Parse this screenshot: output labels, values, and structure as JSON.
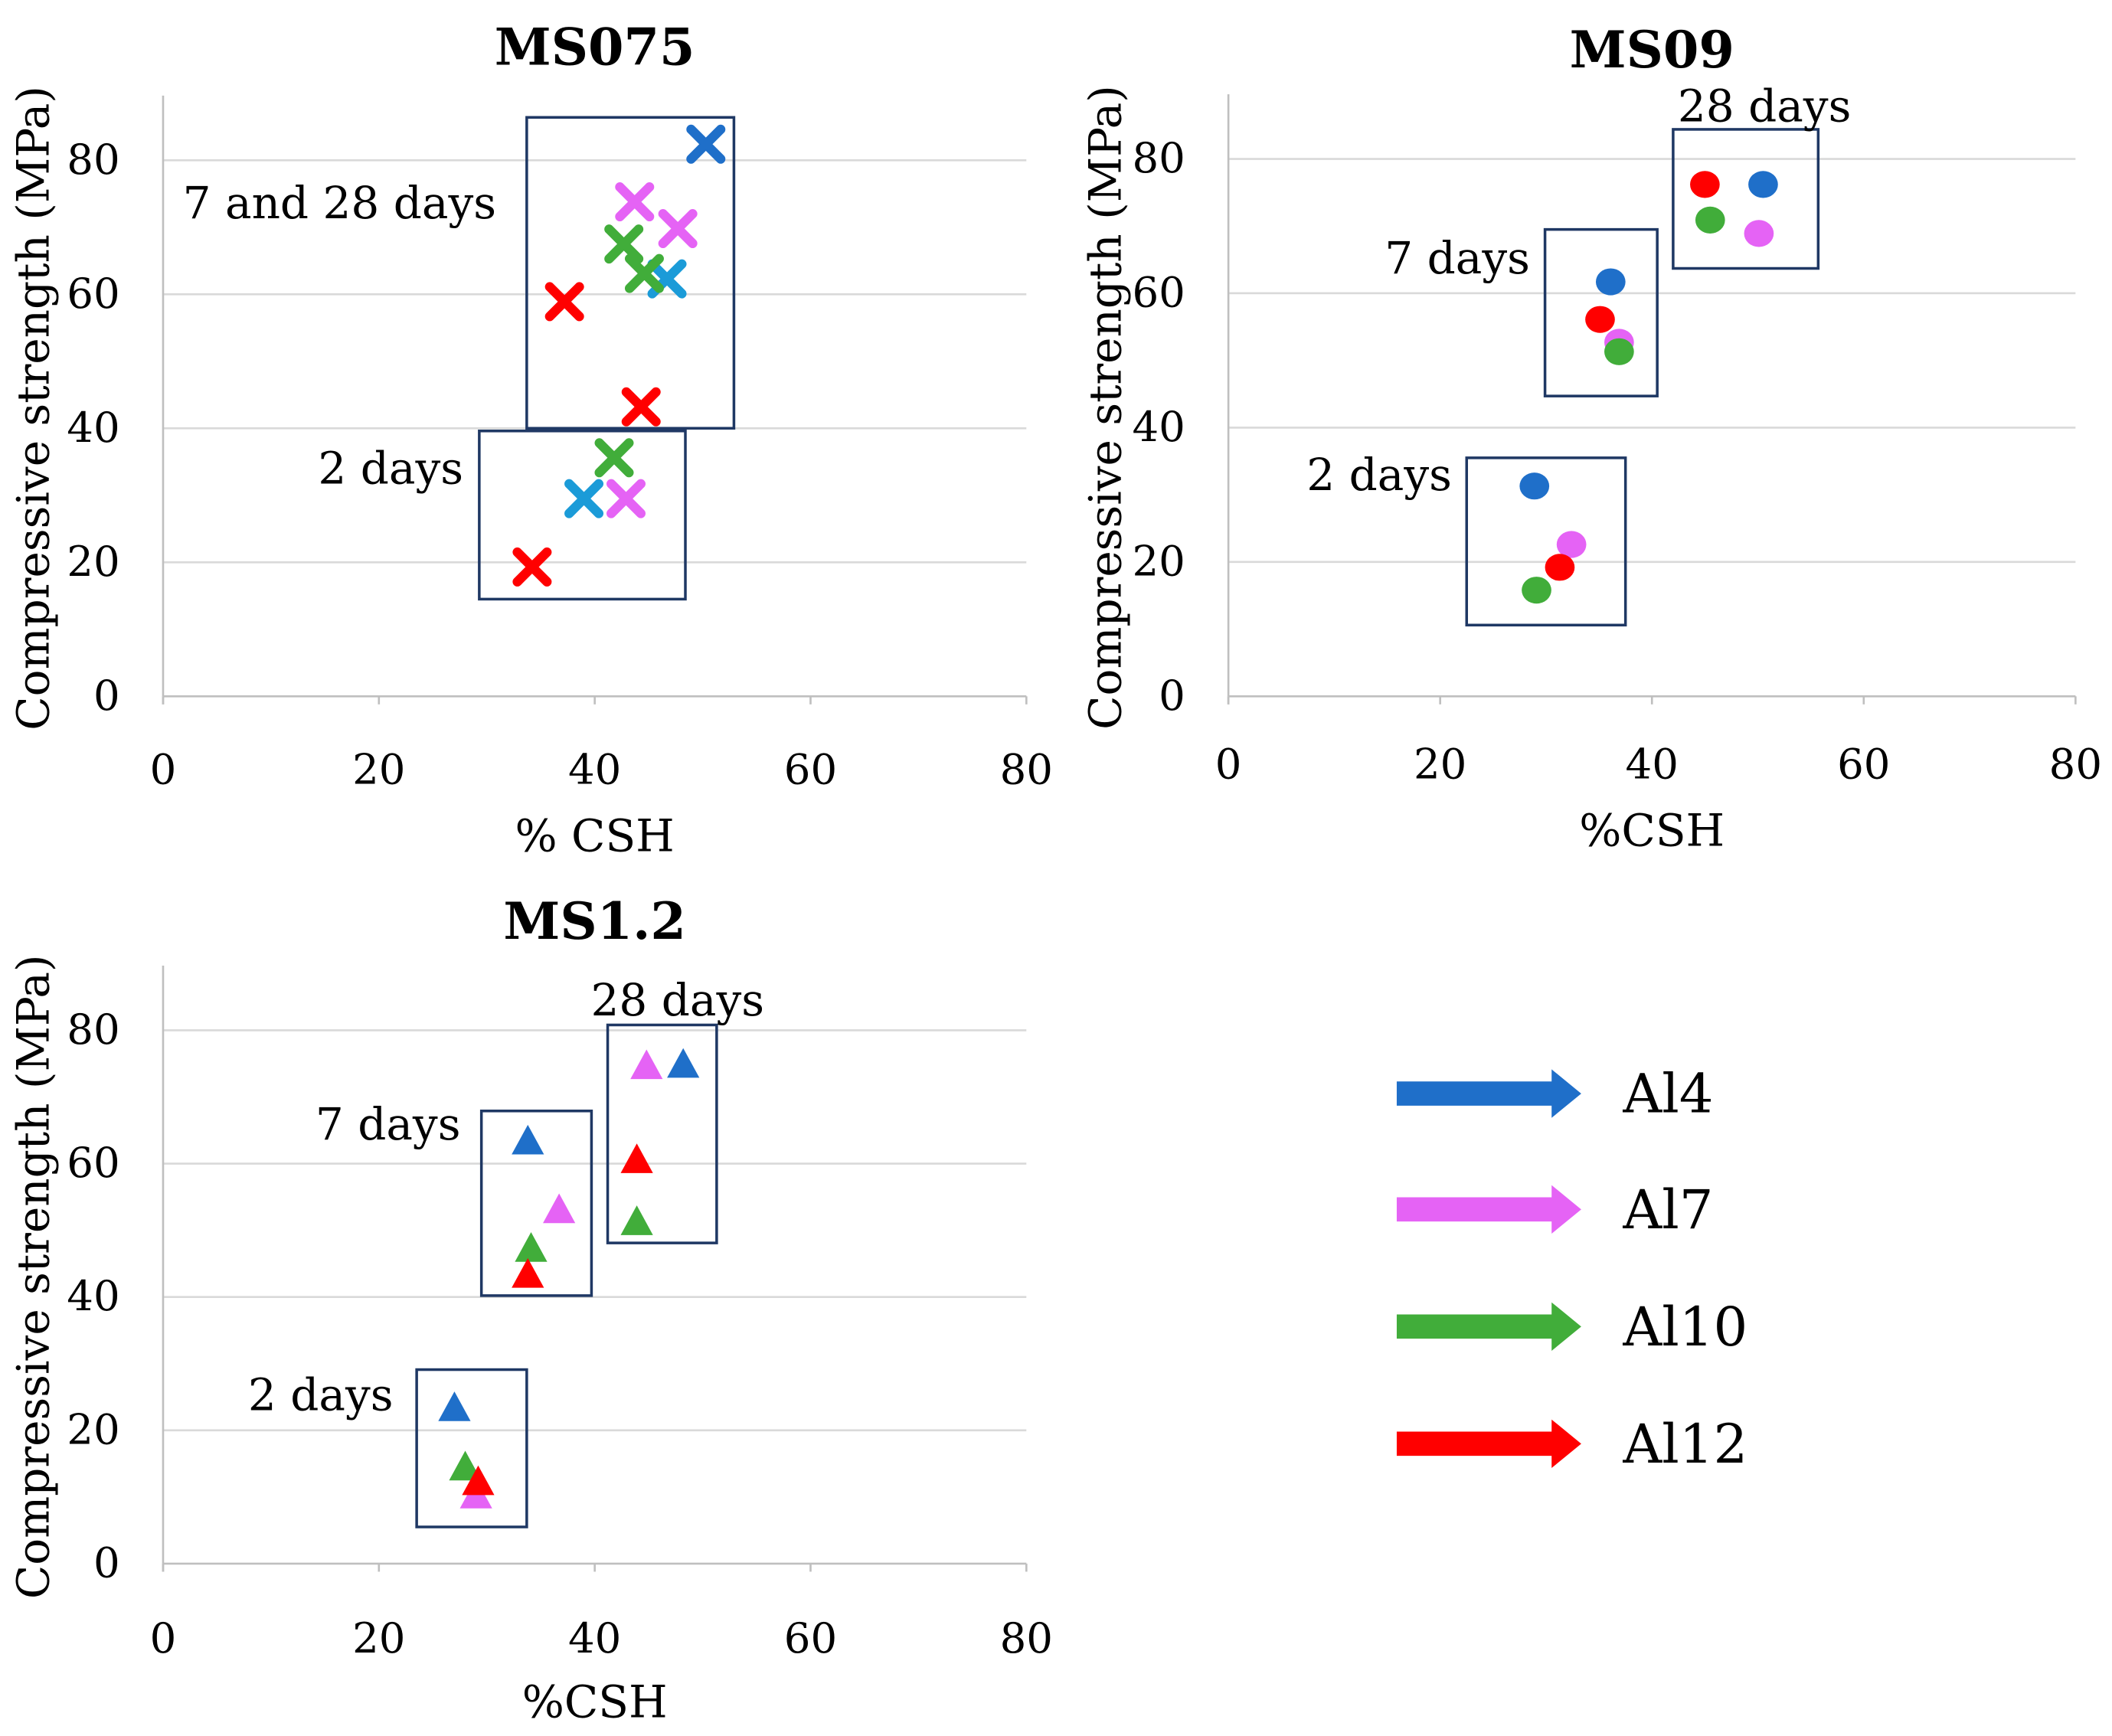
{
  "chart_data": [
    {
      "type": "scatter",
      "title": "MS075",
      "xlabel": "% CSH",
      "ylabel": "Compressive strength (MPa)",
      "xlim": [
        0,
        80
      ],
      "ylim": [
        0,
        80
      ],
      "xticks": [
        "0",
        "20",
        "40",
        "60",
        "80"
      ],
      "yticks": [
        "0",
        "20",
        "40",
        "60",
        "80"
      ],
      "marker": "x",
      "grid": "horizontal",
      "series": [
        {
          "name": "Al4",
          "color": "#1f6fc9",
          "points": [
            {
              "x": 39.0,
              "y": 29.5,
              "color": "#1b9bd8"
            },
            {
              "x": 46.7,
              "y": 62.3,
              "color": "#1b9bd8"
            },
            {
              "x": 50.3,
              "y": 82.4
            }
          ]
        },
        {
          "name": "Al7",
          "color": "#e563f5",
          "points": [
            {
              "x": 42.9,
              "y": 29.5
            },
            {
              "x": 47.7,
              "y": 69.8
            },
            {
              "x": 43.7,
              "y": 73.8
            }
          ]
        },
        {
          "name": "Al10",
          "color": "#41ad3a",
          "points": [
            {
              "x": 41.8,
              "y": 35.6
            },
            {
              "x": 44.6,
              "y": 63.1
            },
            {
              "x": 42.7,
              "y": 67.5
            }
          ]
        },
        {
          "name": "Al12",
          "color": "#ff0000",
          "points": [
            {
              "x": 34.2,
              "y": 19.3
            },
            {
              "x": 44.3,
              "y": 43.2
            },
            {
              "x": 37.2,
              "y": 58.9
            }
          ]
        }
      ],
      "groups": [
        {
          "label": "7 and 28 days",
          "x": [
            33.7,
            52.9
          ],
          "y": [
            40,
            86.4
          ]
        },
        {
          "label": "2 days",
          "x": [
            29.3,
            48.4
          ],
          "y": [
            14.5,
            39.6
          ]
        }
      ]
    },
    {
      "type": "scatter",
      "title": "MS09",
      "xlabel": "%CSH",
      "ylabel": "Compressive strength (MPa)",
      "xlim": [
        0,
        80
      ],
      "ylim": [
        0,
        80
      ],
      "xticks": [
        "0",
        "20",
        "40",
        "60",
        "80"
      ],
      "yticks": [
        "0",
        "20",
        "40",
        "60",
        "80"
      ],
      "marker": "circle",
      "grid": "horizontal",
      "series": [
        {
          "name": "Al4",
          "color": "#1f6fc9",
          "points": [
            {
              "x": 28.9,
              "y": 31.3
            },
            {
              "x": 36.1,
              "y": 61.7
            },
            {
              "x": 50.5,
              "y": 76.2
            }
          ]
        },
        {
          "name": "Al7",
          "color": "#e563f5",
          "points": [
            {
              "x": 32.4,
              "y": 22.6
            },
            {
              "x": 36.9,
              "y": 52.7
            },
            {
              "x": 50.1,
              "y": 68.9
            }
          ]
        },
        {
          "name": "Al12",
          "color": "#ff0000",
          "points": [
            {
              "x": 31.3,
              "y": 19.2
            },
            {
              "x": 35.1,
              "y": 56.1
            },
            {
              "x": 45.0,
              "y": 76.2
            }
          ]
        },
        {
          "name": "Al10",
          "color": "#41ad3a",
          "points": [
            {
              "x": 29.1,
              "y": 15.8
            },
            {
              "x": 36.9,
              "y": 51.3
            },
            {
              "x": 45.5,
              "y": 70.9
            }
          ]
        }
      ],
      "groups": [
        {
          "label": "28 days",
          "x": [
            42.0,
            55.7
          ],
          "y": [
            63.7,
            84.4
          ]
        },
        {
          "label": "7 days",
          "x": [
            29.9,
            40.5
          ],
          "y": [
            44.7,
            69.5
          ]
        },
        {
          "label": "2 days",
          "x": [
            22.5,
            37.5
          ],
          "y": [
            10.6,
            35.5
          ]
        }
      ]
    },
    {
      "type": "scatter",
      "title": "MS1.2",
      "xlabel": "%CSH",
      "ylabel": "Compressive strength (MPa)",
      "xlim": [
        0,
        80
      ],
      "ylim": [
        0,
        80
      ],
      "xticks": [
        "0",
        "20",
        "40",
        "60",
        "80"
      ],
      "yticks": [
        "0",
        "20",
        "40",
        "60",
        "80"
      ],
      "marker": "triangle",
      "grid": "horizontal",
      "series": [
        {
          "name": "Al7",
          "color": "#e563f5",
          "points": [
            {
              "x": 29.0,
              "y": 10.3
            },
            {
              "x": 36.7,
              "y": 53.1
            },
            {
              "x": 44.8,
              "y": 74.7
            }
          ]
        },
        {
          "name": "Al10",
          "color": "#41ad3a",
          "points": [
            {
              "x": 28.0,
              "y": 14.5
            },
            {
              "x": 34.1,
              "y": 47.3
            },
            {
              "x": 43.9,
              "y": 51.3
            }
          ]
        },
        {
          "name": "Al12",
          "color": "#ff0000",
          "points": [
            {
              "x": 29.2,
              "y": 12.3
            },
            {
              "x": 33.8,
              "y": 43.4
            },
            {
              "x": 43.9,
              "y": 60.6
            }
          ]
        },
        {
          "name": "Al4",
          "color": "#1f6fc9",
          "points": [
            {
              "x": 27.0,
              "y": 23.4
            },
            {
              "x": 33.8,
              "y": 63.4
            },
            {
              "x": 48.2,
              "y": 74.9
            }
          ]
        }
      ],
      "groups": [
        {
          "label": "28 days",
          "x": [
            41.2,
            51.3
          ],
          "y": [
            48.1,
            80.8
          ]
        },
        {
          "label": "7 days",
          "x": [
            29.5,
            39.7
          ],
          "y": [
            40.2,
            67.9
          ]
        },
        {
          "label": "2 days",
          "x": [
            23.5,
            33.7
          ],
          "y": [
            5.5,
            29.1
          ]
        }
      ]
    }
  ],
  "legend": [
    {
      "label": "Al4",
      "color": "#1f6fc9"
    },
    {
      "label": "Al7",
      "color": "#e563f5"
    },
    {
      "label": "Al10",
      "color": "#41ad3a"
    },
    {
      "label": "Al12",
      "color": "#ff0000"
    }
  ]
}
